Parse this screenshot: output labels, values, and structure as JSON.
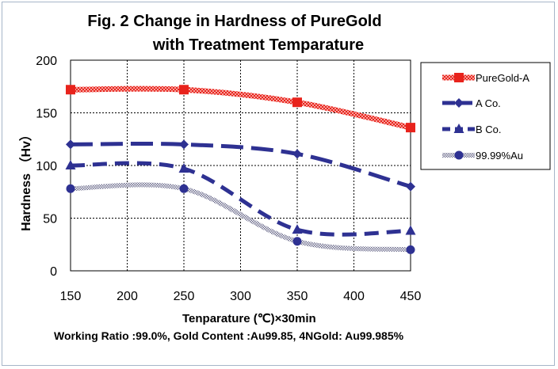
{
  "title_line1": "Fig. 2  Change in Hardness of PureGold",
  "title_line2": "with Treatment Temparature",
  "footer": "Working Ratio :99.0%, Gold Content :Au99.85, 4NGold: Au99.985%",
  "chart_data": {
    "type": "line",
    "title": "Fig. 2  Change in Hardness of PureGold with Treatment Temparature",
    "xlabel": "Tenparature (℃)×30min",
    "ylabel": "Hardness （Hv）",
    "xlim": [
      150,
      450
    ],
    "ylim": [
      0,
      200
    ],
    "xticks": [
      150,
      200,
      250,
      300,
      350,
      400,
      450
    ],
    "yticks": [
      0,
      50,
      100,
      150,
      200
    ],
    "grid": true,
    "legend_position": "right",
    "series": [
      {
        "name": "PureGold-A",
        "x": [
          150,
          250,
          350,
          450
        ],
        "y": [
          172,
          172,
          160,
          136
        ],
        "color": "#e8231c",
        "marker": "square",
        "style": "thick-dotted"
      },
      {
        "name": "A Co.",
        "x": [
          150,
          250,
          350,
          450
        ],
        "y": [
          120,
          120,
          111,
          80
        ],
        "color": "#2e3192",
        "marker": "diamond",
        "style": "long-dash"
      },
      {
        "name": "B Co.",
        "x": [
          150,
          250,
          350,
          450
        ],
        "y": [
          100,
          97,
          39,
          38
        ],
        "color": "#2e3192",
        "marker": "triangle",
        "style": "dash"
      },
      {
        "name": "99.99%Au",
        "x": [
          150,
          250,
          350,
          450
        ],
        "y": [
          78,
          78,
          28,
          20
        ],
        "color": "#7a7a9a",
        "marker": "circle",
        "style": "dotted"
      }
    ]
  }
}
